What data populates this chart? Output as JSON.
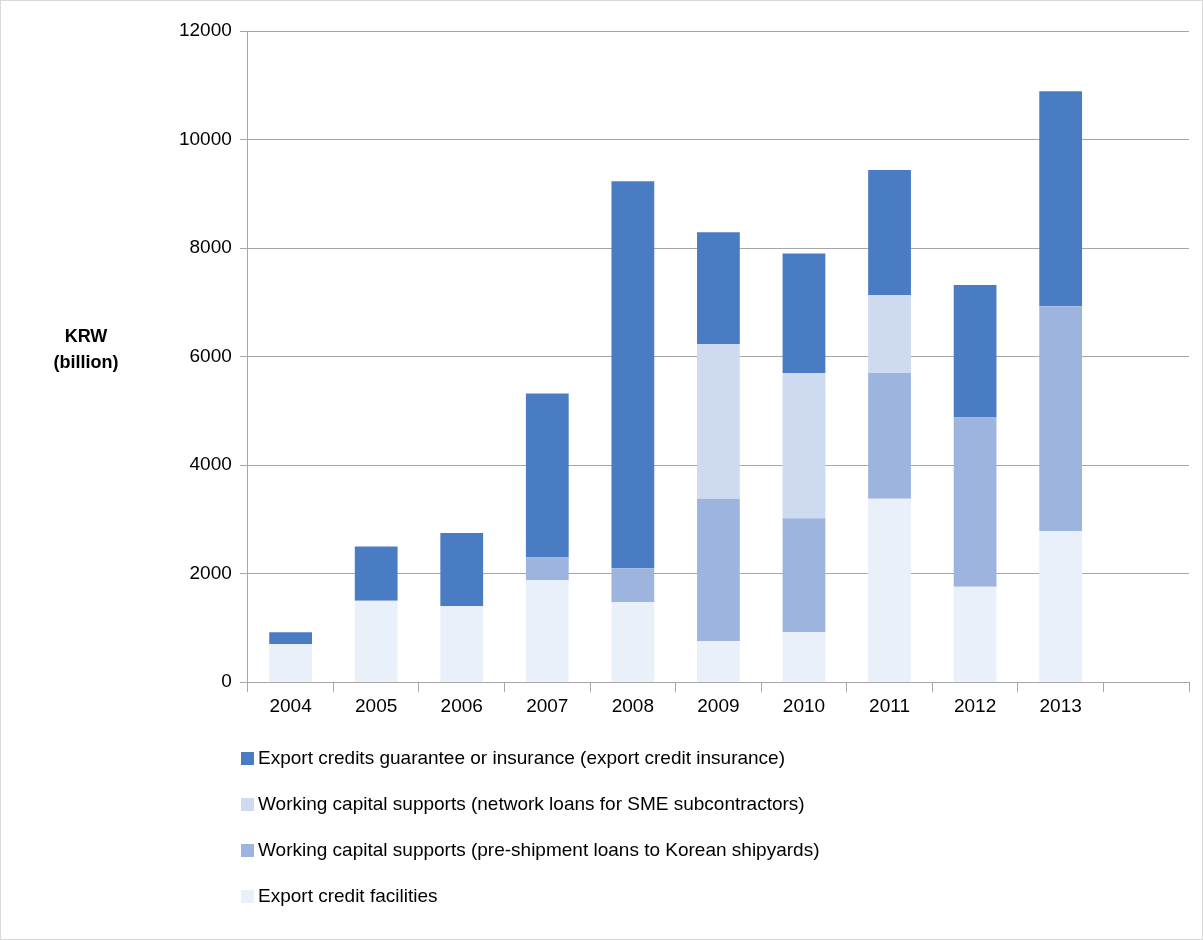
{
  "chart_data": {
    "type": "bar",
    "stacked": true,
    "ylabel": "KRW (billion)",
    "categories": [
      "2004",
      "2005",
      "2006",
      "2007",
      "2008",
      "2009",
      "2010",
      "2011",
      "2012",
      "2013",
      null
    ],
    "series": [
      {
        "name": "Export credit facilities",
        "color": "#eaf0f9",
        "values": [
          700,
          1500,
          1400,
          1880,
          1480,
          760,
          920,
          3380,
          1760,
          2780,
          null
        ]
      },
      {
        "name": "Working capital supports (pre-shipment loans to Korean shipyards)",
        "color": "#9db5de",
        "values": [
          null,
          null,
          null,
          420,
          620,
          2620,
          2100,
          2320,
          3120,
          4150,
          null
        ]
      },
      {
        "name": "Working capital supports (network loans for SME subcontractors)",
        "color": "#cddaf0",
        "values": [
          null,
          null,
          null,
          null,
          null,
          2850,
          2680,
          1430,
          null,
          null,
          null
        ]
      },
      {
        "name": "Export credits guarantee or insurance (export credit insurance)",
        "color": "#4a7cc4",
        "values": [
          220,
          1000,
          1350,
          3020,
          7130,
          2060,
          2200,
          2310,
          2440,
          3960,
          null
        ]
      }
    ],
    "ylim": [
      0,
      12000
    ],
    "yticks": [
      0,
      2000,
      4000,
      6000,
      8000,
      10000,
      12000
    ],
    "grid": "y",
    "legend": "bottom"
  }
}
